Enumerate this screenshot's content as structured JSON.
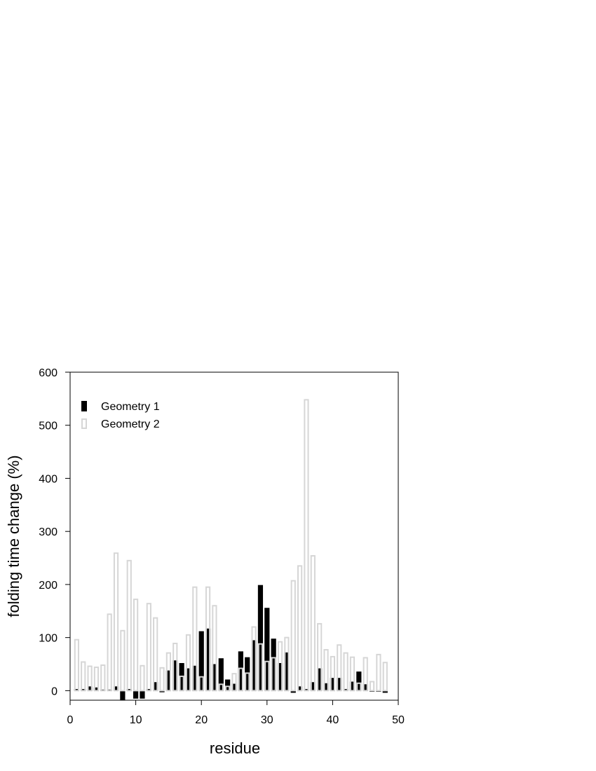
{
  "chart_data": {
    "type": "bar",
    "xlabel": "residue",
    "ylabel": "folding time change (%)",
    "xlim": [
      0,
      50
    ],
    "ylim": [
      -18,
      600
    ],
    "xticks": [
      0,
      10,
      20,
      30,
      40,
      50
    ],
    "yticks": [
      0,
      100,
      200,
      300,
      400,
      500,
      600
    ],
    "grid": false,
    "legend_position": "top-left",
    "x": [
      1,
      2,
      3,
      4,
      5,
      6,
      7,
      8,
      9,
      10,
      11,
      12,
      13,
      14,
      15,
      16,
      17,
      18,
      19,
      20,
      21,
      22,
      23,
      24,
      25,
      26,
      27,
      28,
      29,
      30,
      31,
      32,
      33,
      34,
      35,
      36,
      37,
      38,
      39,
      40,
      41,
      42,
      43,
      44,
      45,
      46,
      47,
      48
    ],
    "series": [
      {
        "name": "Geometry 1",
        "color": "#000000",
        "values": [
          3,
          3,
          8,
          6,
          2,
          0,
          8,
          -18,
          3,
          -15,
          -15,
          3,
          16,
          -3,
          38,
          57,
          52,
          42,
          47,
          112,
          117,
          50,
          61,
          21,
          13,
          74,
          63,
          95,
          199,
          156,
          98,
          52,
          72,
          -4,
          8,
          3,
          16,
          42,
          14,
          24,
          24,
          3,
          17,
          36,
          12,
          -2,
          -2,
          -4
        ]
      },
      {
        "name": "Geometry 2",
        "color": "#d6d6d6",
        "values": [
          96,
          54,
          46,
          44,
          48,
          144,
          259,
          113,
          245,
          172,
          47,
          164,
          137,
          43,
          71,
          89,
          27,
          105,
          195,
          26,
          195,
          160,
          12,
          8,
          32,
          42,
          33,
          120,
          88,
          55,
          62,
          92,
          100,
          207,
          235,
          548,
          254,
          126,
          77,
          64,
          86,
          71,
          63,
          14,
          62,
          17,
          68,
          53
        ]
      }
    ]
  }
}
